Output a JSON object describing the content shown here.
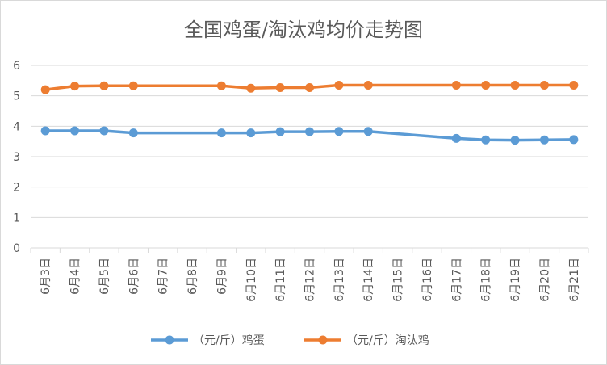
{
  "chart_data": {
    "type": "line",
    "title": "全国鸡蛋/淘汰鸡均价走势图",
    "xlabel": "",
    "ylabel": "",
    "ylim": [
      0,
      6
    ],
    "yticks": [
      "0",
      "1",
      "2",
      "3",
      "4",
      "5",
      "6"
    ],
    "grid": true,
    "legend_position": "bottom",
    "categories": [
      "6月3日",
      "6月4日",
      "6月5日",
      "6月6日",
      "6月7日",
      "6月8日",
      "6月9日",
      "6月10日",
      "6月11日",
      "6月12日",
      "6月13日",
      "6月14日",
      "6月15日",
      "6月16日",
      "6月17日",
      "6月18日",
      "6月19日",
      "6月20日",
      "6月21日"
    ],
    "series": [
      {
        "name": "（元/斤）鸡蛋",
        "color": "#5b9bd5",
        "values": [
          3.85,
          3.85,
          3.85,
          3.78,
          null,
          null,
          3.78,
          3.78,
          3.82,
          3.82,
          3.83,
          3.83,
          null,
          null,
          3.6,
          3.55,
          3.54,
          3.55,
          3.56
        ]
      },
      {
        "name": "（元/斤）淘汰鸡",
        "color": "#ed7d31",
        "values": [
          5.2,
          5.32,
          5.33,
          5.33,
          null,
          null,
          5.33,
          5.25,
          5.27,
          5.27,
          5.35,
          5.35,
          null,
          null,
          5.35,
          5.35,
          5.35,
          5.35,
          5.35
        ]
      }
    ]
  }
}
